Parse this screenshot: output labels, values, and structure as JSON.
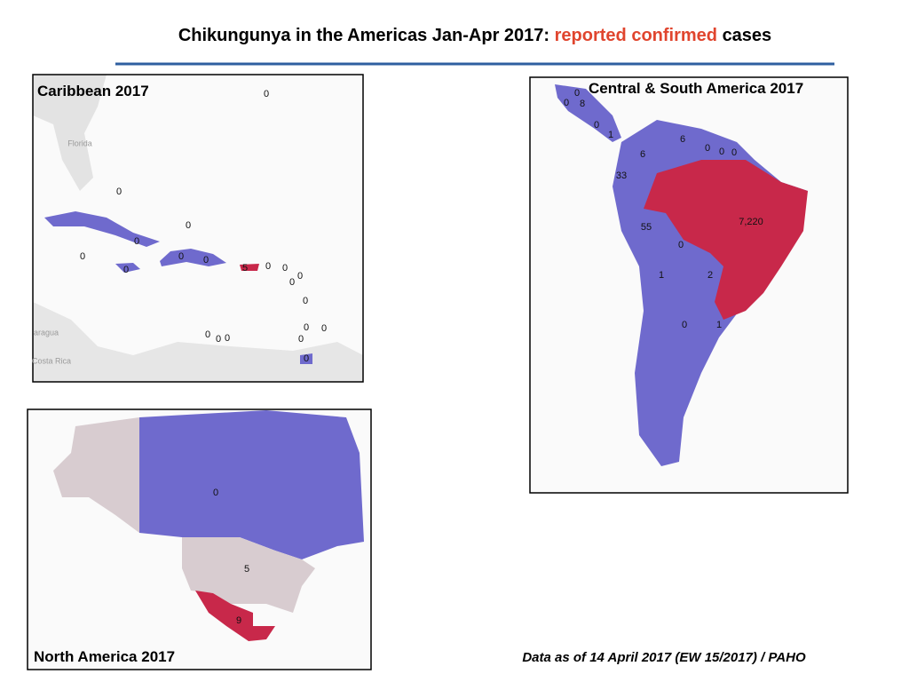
{
  "title": {
    "prefix": "Chikungunya in the Americas Jan-Apr 2017:",
    "highlight": "reported confirmed",
    "suffix": "cases"
  },
  "panels": [
    {
      "title": "Caribbean 2017",
      "labels": [
        "0",
        "0",
        "0",
        "0",
        "0",
        "0",
        "0",
        "0",
        "5",
        "0",
        "0",
        "0",
        "0",
        "0",
        "0",
        "0",
        "0",
        "0",
        "0",
        "0",
        "0"
      ],
      "basemap": [
        "Florida",
        "aragua",
        "Costa Rica"
      ]
    },
    {
      "title": "Central & South America 2017",
      "labels": [
        "0",
        "0",
        "8",
        "0",
        "1",
        "6",
        "0",
        "0",
        "0",
        "6",
        "33",
        "7,220",
        "55",
        "0",
        "1",
        "2",
        "0",
        "1"
      ]
    },
    {
      "title": "North America 2017",
      "labels": [
        "0",
        "5",
        "9"
      ]
    }
  ],
  "footer": "Data as of 14 April 2017 (EW 15/2017) / PAHO"
}
